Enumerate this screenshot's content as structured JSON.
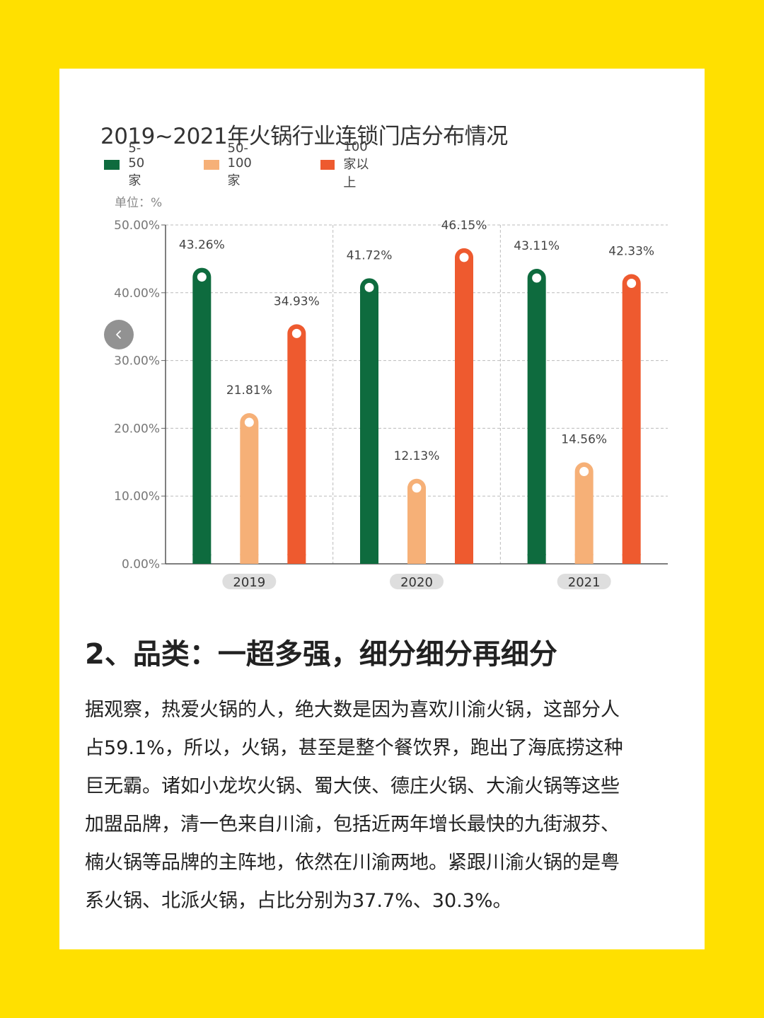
{
  "chart_data": {
    "type": "bar",
    "title": "2019~2021年火锅行业连锁门店分布情况",
    "unit_label": "单位：%",
    "categories": [
      "2019",
      "2020",
      "2021"
    ],
    "series": [
      {
        "name": "5-50家",
        "color": "#0E6B3E",
        "values": [
          43.26,
          41.72,
          43.11
        ],
        "labels": [
          "43.26%",
          "41.72%",
          "43.11%"
        ]
      },
      {
        "name": "50-100家",
        "color": "#F6B077",
        "values": [
          21.81,
          12.13,
          14.56
        ],
        "labels": [
          "21.81%",
          "12.13%",
          "14.56%"
        ]
      },
      {
        "name": "100家以上",
        "color": "#EE5A2F",
        "values": [
          34.93,
          46.15,
          42.33
        ],
        "labels": [
          "34.93%",
          "46.15%",
          "42.33%"
        ]
      }
    ],
    "ylim": [
      0,
      50
    ],
    "yticks": [
      0,
      10,
      20,
      30,
      40,
      50
    ],
    "ytick_labels": [
      "0.00%",
      "10.00%",
      "20.00%",
      "30.00%",
      "40.00%",
      "50.00%"
    ],
    "grid": true,
    "legend_position": "top-left"
  },
  "nav": {
    "prev_icon": "chevron-left-icon"
  },
  "article": {
    "heading": "2、品类：一超多强，细分细分再细分",
    "lines": [
      "据观察，热爱火锅的人，绝大数是因为喜欢川渝火锅，这部分人",
      "占59.1%，所以，火锅，甚至是整个餐饮界，跑出了海底捞这种",
      "巨无霸。诸如小龙坎火锅、蜀大侠、德庄火锅、大渝火锅等这些",
      "加盟品牌，清一色来自川渝，包括近两年增长最快的九街淑芬、",
      "楠火锅等品牌的主阵地，依然在川渝两地。紧跟川渝火锅的是粤",
      "系火锅、北派火锅，占比分别为37.7%、30.3%。"
    ]
  },
  "colors": {
    "background": "#FFE000",
    "card": "#FFFFFF"
  }
}
